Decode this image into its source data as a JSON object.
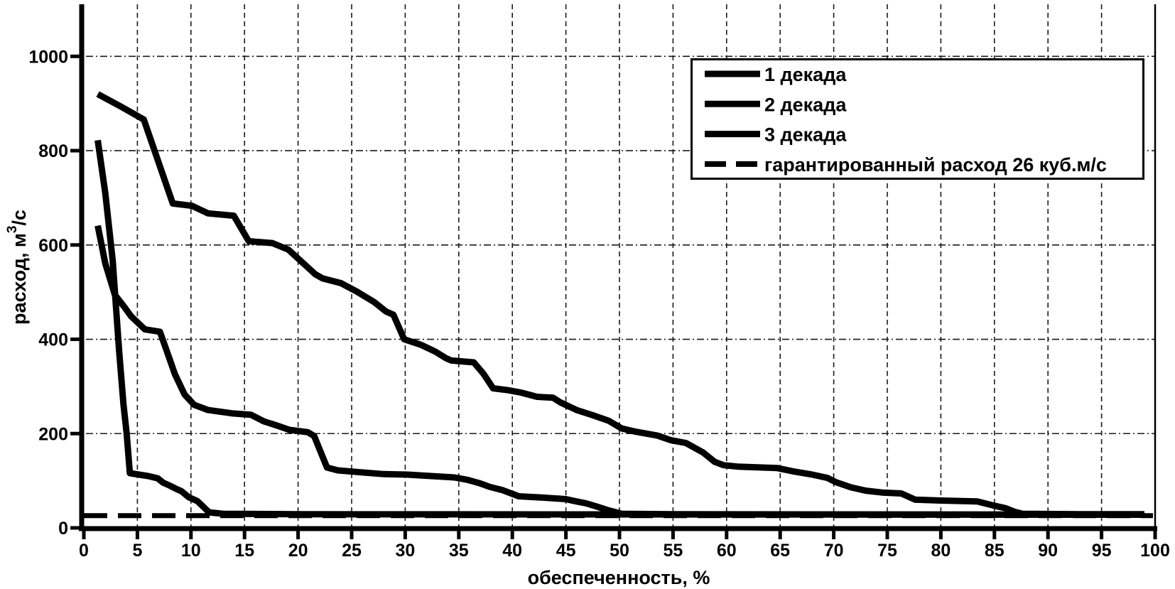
{
  "figure": {
    "background": "#ffffff",
    "ink": "#000000",
    "grid_color": "#1a1a1a"
  },
  "chart_data": {
    "type": "line",
    "title": "",
    "xlabel": "обеспеченность, %",
    "ylabel": "расход, м3/с",
    "ylabel_parts": {
      "prefix": "расход, м",
      "superscript": "3",
      "suffix": "/с"
    },
    "xlim": [
      0,
      100
    ],
    "ylim": [
      0,
      1100
    ],
    "x_ticks": [
      0,
      5,
      10,
      15,
      20,
      25,
      30,
      35,
      40,
      45,
      50,
      55,
      60,
      65,
      70,
      75,
      80,
      85,
      90,
      95,
      100
    ],
    "y_ticks": [
      0,
      200,
      400,
      600,
      800,
      1000
    ],
    "grid": true,
    "legend_position": "top-right",
    "guaranteed_flow_value": 26,
    "series": [
      {
        "name": "1 декада",
        "style": "solid",
        "points": [
          [
            1.3,
            920
          ],
          [
            3.5,
            893
          ],
          [
            5.6,
            866
          ],
          [
            8.3,
            688
          ],
          [
            10.1,
            683
          ],
          [
            11.6,
            667
          ],
          [
            14,
            662
          ],
          [
            15.4,
            608
          ],
          [
            17.6,
            604
          ],
          [
            19.1,
            590
          ],
          [
            20.5,
            561
          ],
          [
            21.6,
            538
          ],
          [
            22.3,
            529
          ],
          [
            24,
            519
          ],
          [
            25.5,
            501
          ],
          [
            27.1,
            479
          ],
          [
            28.2,
            459
          ],
          [
            28.9,
            452
          ],
          [
            29.9,
            400
          ],
          [
            31.5,
            388
          ],
          [
            32.8,
            374
          ],
          [
            33.8,
            360
          ],
          [
            34.3,
            355
          ],
          [
            36.4,
            351
          ],
          [
            37.3,
            327
          ],
          [
            38.2,
            296
          ],
          [
            39.6,
            292
          ],
          [
            40.8,
            287
          ],
          [
            42.3,
            278
          ],
          [
            43.8,
            276
          ],
          [
            44.5,
            266
          ],
          [
            46,
            250
          ],
          [
            47.5,
            239
          ],
          [
            49,
            227
          ],
          [
            50.2,
            211
          ],
          [
            51.5,
            204
          ],
          [
            53.5,
            196
          ],
          [
            54.8,
            186
          ],
          [
            56.2,
            180
          ],
          [
            57.8,
            160
          ],
          [
            58.9,
            140
          ],
          [
            59.7,
            133
          ],
          [
            61,
            130
          ],
          [
            64.7,
            127
          ],
          [
            66.2,
            120
          ],
          [
            68,
            113
          ],
          [
            69.4,
            106
          ],
          [
            70.2,
            97
          ],
          [
            71.6,
            86
          ],
          [
            73,
            79
          ],
          [
            74.5,
            75
          ],
          [
            76.3,
            73
          ],
          [
            77.6,
            60
          ],
          [
            80,
            58
          ],
          [
            83.4,
            56
          ],
          [
            85,
            47
          ],
          [
            86,
            42
          ],
          [
            86.9,
            34
          ],
          [
            87.6,
            30
          ],
          [
            93,
            29
          ],
          [
            99,
            29
          ]
        ]
      },
      {
        "name": "2 декада",
        "style": "solid",
        "points": [
          [
            1.3,
            641
          ],
          [
            2,
            561
          ],
          [
            2.9,
            494
          ],
          [
            3.7,
            471
          ],
          [
            4.4,
            449
          ],
          [
            5.1,
            434
          ],
          [
            5.7,
            421
          ],
          [
            7.1,
            416
          ],
          [
            7.7,
            378
          ],
          [
            8.5,
            326
          ],
          [
            9.4,
            283
          ],
          [
            10.3,
            261
          ],
          [
            11.6,
            250
          ],
          [
            13.8,
            243
          ],
          [
            15.6,
            240
          ],
          [
            16.8,
            226
          ],
          [
            17.9,
            218
          ],
          [
            19.2,
            208
          ],
          [
            20.9,
            203
          ],
          [
            21.5,
            195
          ],
          [
            22.7,
            128
          ],
          [
            23.7,
            122
          ],
          [
            25.8,
            118
          ],
          [
            28,
            114
          ],
          [
            30.2,
            113
          ],
          [
            32.4,
            110
          ],
          [
            34.6,
            107
          ],
          [
            35.8,
            102
          ],
          [
            36.9,
            95
          ],
          [
            37.9,
            87
          ],
          [
            39.1,
            80
          ],
          [
            40.6,
            67
          ],
          [
            43,
            64
          ],
          [
            45,
            61
          ],
          [
            45.8,
            57
          ],
          [
            46.9,
            52
          ],
          [
            47.9,
            45
          ],
          [
            49,
            37
          ],
          [
            50.2,
            30
          ],
          [
            55,
            29
          ],
          [
            99,
            28
          ]
        ]
      },
      {
        "name": "3 декада",
        "style": "solid",
        "points": [
          [
            1.3,
            822
          ],
          [
            2,
            710
          ],
          [
            2.4,
            628
          ],
          [
            2.7,
            566
          ],
          [
            3,
            470
          ],
          [
            3.3,
            373
          ],
          [
            3.7,
            262
          ],
          [
            4,
            200
          ],
          [
            4.3,
            116
          ],
          [
            6,
            110
          ],
          [
            6.9,
            105
          ],
          [
            7.4,
            96
          ],
          [
            8,
            90
          ],
          [
            8.7,
            82
          ],
          [
            9.1,
            78
          ],
          [
            9.8,
            65
          ],
          [
            10.6,
            57
          ],
          [
            11.7,
            33
          ],
          [
            13,
            30
          ],
          [
            20,
            29
          ],
          [
            99,
            28
          ]
        ]
      },
      {
        "name": "гарантированный расход 26 куб.м/с",
        "style": "dashed",
        "points": [
          [
            0,
            26
          ],
          [
            99.8,
            26
          ]
        ]
      }
    ]
  }
}
